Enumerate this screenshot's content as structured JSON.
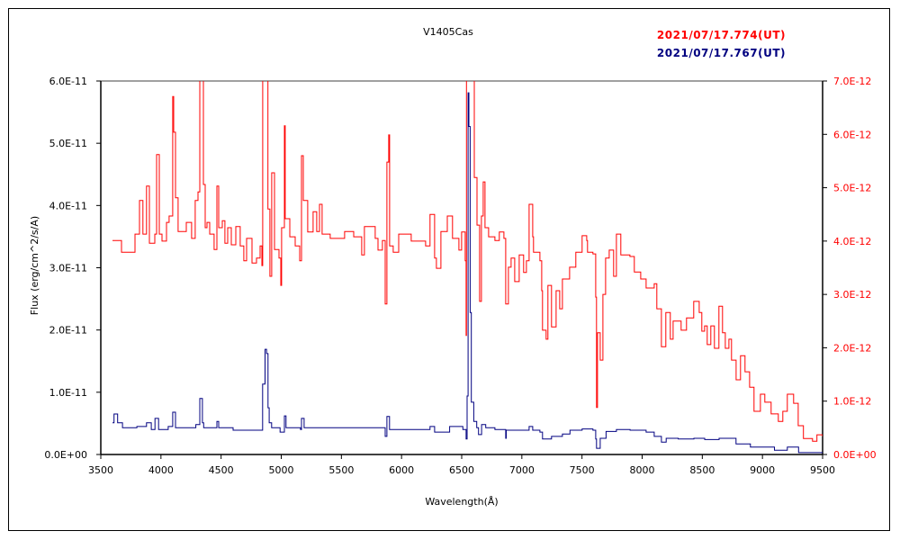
{
  "chart_data": {
    "type": "line",
    "title": "V1405Cas",
    "xlabel": "Wavelength(Å)",
    "ylabel": "Flux (erg/cm^2/s/A)",
    "xlim": [
      3500,
      9500
    ],
    "ylim_left": [
      0,
      6e-11
    ],
    "ylim_right": [
      0,
      7e-12
    ],
    "x_ticks": [
      "3500",
      "4000",
      "4500",
      "5000",
      "5500",
      "6000",
      "6500",
      "7000",
      "7500",
      "8000",
      "8500",
      "9000",
      "9500"
    ],
    "x_tick_values": [
      3500,
      4000,
      4500,
      5000,
      5500,
      6000,
      6500,
      7000,
      7500,
      8000,
      8500,
      9000,
      9500
    ],
    "y_left_ticks": [
      "0.0E+00",
      "1.0E-11",
      "2.0E-11",
      "3.0E-11",
      "4.0E-11",
      "5.0E-11",
      "6.0E-11"
    ],
    "y_left_tick_values": [
      0,
      1e-11,
      2e-11,
      3e-11,
      4e-11,
      5e-11,
      6e-11
    ],
    "y_right_ticks": [
      "0.0E+00",
      "1.0E-12",
      "2.0E-12",
      "3.0E-12",
      "4.0E-12",
      "5.0E-12",
      "6.0E-12",
      "7.0E-12"
    ],
    "y_right_tick_values": [
      0,
      1e-12,
      2e-12,
      3e-12,
      4e-12,
      5e-12,
      6e-12,
      7e-12
    ],
    "grid": false,
    "legend_placement": "top-right",
    "series": [
      {
        "name": "2021/07/17.774(UT)",
        "color": "#ff0000",
        "axis": "right",
        "points": [
          [
            3597,
            4.01e-12
          ],
          [
            3672,
            3.79e-12
          ],
          [
            3784,
            4.13e-12
          ],
          [
            3822,
            4.76e-12
          ],
          [
            3850,
            4.13e-12
          ],
          [
            3880,
            5.03e-12
          ],
          [
            3904,
            3.96e-12
          ],
          [
            3949,
            4.13e-12
          ],
          [
            3964,
            5.62e-12
          ],
          [
            3986,
            4.13e-12
          ],
          [
            4009,
            4e-12
          ],
          [
            4046,
            4.35e-12
          ],
          [
            4068,
            4.47e-12
          ],
          [
            4098,
            6.71e-12
          ],
          [
            4106,
            6.04e-12
          ],
          [
            4121,
            4.81e-12
          ],
          [
            4143,
            4.18e-12
          ],
          [
            4211,
            4.35e-12
          ],
          [
            4255,
            4.05e-12
          ],
          [
            4285,
            4.76e-12
          ],
          [
            4308,
            4.92e-12
          ],
          [
            4323,
            7.5e-12
          ],
          [
            4345,
            7.5e-12
          ],
          [
            4353,
            5.06e-12
          ],
          [
            4368,
            4.25e-12
          ],
          [
            4383,
            4.35e-12
          ],
          [
            4405,
            4.13e-12
          ],
          [
            4442,
            3.84e-12
          ],
          [
            4465,
            5.03e-12
          ],
          [
            4480,
            4.25e-12
          ],
          [
            4510,
            4.38e-12
          ],
          [
            4532,
            3.96e-12
          ],
          [
            4555,
            4.25e-12
          ],
          [
            4585,
            3.93e-12
          ],
          [
            4622,
            4.27e-12
          ],
          [
            4659,
            3.91e-12
          ],
          [
            4689,
            3.63e-12
          ],
          [
            4712,
            4.05e-12
          ],
          [
            4757,
            3.59e-12
          ],
          [
            4794,
            3.68e-12
          ],
          [
            4824,
            3.91e-12
          ],
          [
            4839,
            3.54e-12
          ],
          [
            4846,
            7.5e-12
          ],
          [
            4884,
            7.5e-12
          ],
          [
            4889,
            4.6e-12
          ],
          [
            4906,
            3.34e-12
          ],
          [
            4921,
            5.28e-12
          ],
          [
            4944,
            3.84e-12
          ],
          [
            4981,
            3.68e-12
          ],
          [
            4996,
            3.17e-12
          ],
          [
            5003,
            4.25e-12
          ],
          [
            5026,
            6.16e-12
          ],
          [
            5033,
            4.42e-12
          ],
          [
            5071,
            4.08e-12
          ],
          [
            5116,
            3.91e-12
          ],
          [
            5153,
            3.63e-12
          ],
          [
            5168,
            5.6e-12
          ],
          [
            5183,
            4.76e-12
          ],
          [
            5220,
            4.17e-12
          ],
          [
            5265,
            4.55e-12
          ],
          [
            5295,
            4.18e-12
          ],
          [
            5318,
            4.69e-12
          ],
          [
            5340,
            4.13e-12
          ],
          [
            5407,
            4.05e-12
          ],
          [
            5527,
            4.18e-12
          ],
          [
            5602,
            4.08e-12
          ],
          [
            5669,
            3.74e-12
          ],
          [
            5691,
            4.27e-12
          ],
          [
            5781,
            4.05e-12
          ],
          [
            5804,
            3.83e-12
          ],
          [
            5841,
            4.01e-12
          ],
          [
            5864,
            2.82e-12
          ],
          [
            5878,
            5.48e-12
          ],
          [
            5893,
            5.99e-12
          ],
          [
            5901,
            3.91e-12
          ],
          [
            5931,
            3.79e-12
          ],
          [
            5976,
            4.13e-12
          ],
          [
            6080,
            4e-12
          ],
          [
            6200,
            3.91e-12
          ],
          [
            6237,
            4.5e-12
          ],
          [
            6275,
            3.68e-12
          ],
          [
            6290,
            3.49e-12
          ],
          [
            6327,
            4.18e-12
          ],
          [
            6380,
            4.47e-12
          ],
          [
            6424,
            4.05e-12
          ],
          [
            6477,
            3.83e-12
          ],
          [
            6499,
            4.17e-12
          ],
          [
            6529,
            3.63e-12
          ],
          [
            6537,
            2.23e-12
          ],
          [
            6540,
            7.5e-12
          ],
          [
            6604,
            7.5e-12
          ],
          [
            6605,
            5.19e-12
          ],
          [
            6627,
            4.3e-12
          ],
          [
            6649,
            2.87e-12
          ],
          [
            6664,
            4.47e-12
          ],
          [
            6679,
            5.11e-12
          ],
          [
            6694,
            4.25e-12
          ],
          [
            6724,
            4.08e-12
          ],
          [
            6776,
            4.01e-12
          ],
          [
            6813,
            4.17e-12
          ],
          [
            6851,
            4.05e-12
          ],
          [
            6866,
            2.82e-12
          ],
          [
            6888,
            3.51e-12
          ],
          [
            6911,
            3.68e-12
          ],
          [
            6941,
            3.24e-12
          ],
          [
            6978,
            3.74e-12
          ],
          [
            7015,
            3.41e-12
          ],
          [
            7038,
            3.63e-12
          ],
          [
            7060,
            4.69e-12
          ],
          [
            7090,
            4.08e-12
          ],
          [
            7097,
            3.79e-12
          ],
          [
            7150,
            3.63e-12
          ],
          [
            7165,
            3.07e-12
          ],
          [
            7172,
            2.33e-12
          ],
          [
            7202,
            2.16e-12
          ],
          [
            7217,
            3.17e-12
          ],
          [
            7247,
            2.39e-12
          ],
          [
            7285,
            3.07e-12
          ],
          [
            7315,
            2.73e-12
          ],
          [
            7337,
            3.29e-12
          ],
          [
            7397,
            3.51e-12
          ],
          [
            7449,
            3.79e-12
          ],
          [
            7501,
            4.1e-12
          ],
          [
            7539,
            4.01e-12
          ],
          [
            7546,
            3.79e-12
          ],
          [
            7591,
            3.76e-12
          ],
          [
            7614,
            2.95e-12
          ],
          [
            7621,
            8.8e-13
          ],
          [
            7629,
            2.28e-12
          ],
          [
            7651,
            1.77e-12
          ],
          [
            7674,
            3e-12
          ],
          [
            7696,
            3.68e-12
          ],
          [
            7726,
            3.83e-12
          ],
          [
            7763,
            3.34e-12
          ],
          [
            7786,
            4.13e-12
          ],
          [
            7823,
            3.74e-12
          ],
          [
            7898,
            3.71e-12
          ],
          [
            7935,
            3.42e-12
          ],
          [
            7988,
            3.29e-12
          ],
          [
            8033,
            3.12e-12
          ],
          [
            8100,
            3.2e-12
          ],
          [
            8122,
            2.73e-12
          ],
          [
            8160,
            2.02e-12
          ],
          [
            8197,
            2.66e-12
          ],
          [
            8234,
            2.16e-12
          ],
          [
            8257,
            2.5e-12
          ],
          [
            8324,
            2.33e-12
          ],
          [
            8369,
            2.56e-12
          ],
          [
            8429,
            2.87e-12
          ],
          [
            8474,
            2.66e-12
          ],
          [
            8496,
            2.31e-12
          ],
          [
            8519,
            2.41e-12
          ],
          [
            8541,
            2.06e-12
          ],
          [
            8571,
            2.41e-12
          ],
          [
            8601,
            1.99e-12
          ],
          [
            8638,
            2.78e-12
          ],
          [
            8668,
            2.28e-12
          ],
          [
            8691,
            1.99e-12
          ],
          [
            8721,
            2.16e-12
          ],
          [
            8743,
            1.77e-12
          ],
          [
            8781,
            1.4e-12
          ],
          [
            8818,
            1.85e-12
          ],
          [
            8855,
            1.55e-12
          ],
          [
            8893,
            1.26e-12
          ],
          [
            8930,
            8.1e-13
          ],
          [
            8983,
            1.13e-12
          ],
          [
            9020,
            9.8e-13
          ],
          [
            9072,
            7.6e-13
          ],
          [
            9132,
            6.2e-13
          ],
          [
            9169,
            8.1e-13
          ],
          [
            9207,
            1.13e-12
          ],
          [
            9259,
            9.6e-13
          ],
          [
            9297,
            5.4e-13
          ],
          [
            9341,
            3e-13
          ],
          [
            9416,
            2.5e-13
          ],
          [
            9453,
            3.7e-13
          ],
          [
            9500,
            3.4e-13
          ]
        ]
      },
      {
        "name": "2021/07/17.767(UT)",
        "color": "#000080",
        "axis": "left",
        "points": [
          [
            3597,
            5.1e-12
          ],
          [
            3610,
            6.5e-12
          ],
          [
            3640,
            5.1e-12
          ],
          [
            3680,
            4.3e-12
          ],
          [
            3800,
            4.5e-12
          ],
          [
            3880,
            5.1e-12
          ],
          [
            3920,
            4e-12
          ],
          [
            3950,
            5.8e-12
          ],
          [
            3980,
            4e-12
          ],
          [
            4060,
            4.5e-12
          ],
          [
            4098,
            6.8e-12
          ],
          [
            4121,
            4.3e-12
          ],
          [
            4210,
            4.3e-12
          ],
          [
            4290,
            4.8e-12
          ],
          [
            4323,
            9e-12
          ],
          [
            4345,
            5.1e-12
          ],
          [
            4355,
            4.3e-12
          ],
          [
            4465,
            5.3e-12
          ],
          [
            4480,
            4.3e-12
          ],
          [
            4600,
            3.9e-12
          ],
          [
            4830,
            3.9e-12
          ],
          [
            4845,
            1.13e-11
          ],
          [
            4865,
            1.69e-11
          ],
          [
            4878,
            1.62e-11
          ],
          [
            4890,
            7.5e-12
          ],
          [
            4900,
            5.1e-12
          ],
          [
            4920,
            4.3e-12
          ],
          [
            4990,
            3.6e-12
          ],
          [
            5026,
            6.2e-12
          ],
          [
            5040,
            4.3e-12
          ],
          [
            5160,
            4e-12
          ],
          [
            5168,
            5.8e-12
          ],
          [
            5190,
            4.3e-12
          ],
          [
            5500,
            4.3e-12
          ],
          [
            5864,
            2.9e-12
          ],
          [
            5878,
            6.1e-12
          ],
          [
            5900,
            4e-12
          ],
          [
            6200,
            4e-12
          ],
          [
            6237,
            4.5e-12
          ],
          [
            6275,
            3.6e-12
          ],
          [
            6400,
            4.5e-12
          ],
          [
            6510,
            4e-12
          ],
          [
            6537,
            2.5e-12
          ],
          [
            6545,
            9.4e-12
          ],
          [
            6553,
            5.81e-11
          ],
          [
            6560,
            5.27e-11
          ],
          [
            6570,
            2.28e-11
          ],
          [
            6580,
            8.4e-12
          ],
          [
            6600,
            5.3e-12
          ],
          [
            6625,
            4.3e-12
          ],
          [
            6640,
            3.2e-12
          ],
          [
            6665,
            4.8e-12
          ],
          [
            6700,
            4.3e-12
          ],
          [
            6776,
            4e-12
          ],
          [
            6866,
            2.6e-12
          ],
          [
            6870,
            3.9e-12
          ],
          [
            7060,
            4.5e-12
          ],
          [
            7090,
            3.9e-12
          ],
          [
            7150,
            3.6e-12
          ],
          [
            7172,
            2.5e-12
          ],
          [
            7247,
            2.9e-12
          ],
          [
            7337,
            3.3e-12
          ],
          [
            7400,
            3.9e-12
          ],
          [
            7501,
            4.1e-12
          ],
          [
            7591,
            3.9e-12
          ],
          [
            7614,
            2.5e-12
          ],
          [
            7621,
            1e-12
          ],
          [
            7651,
            2.6e-12
          ],
          [
            7700,
            3.7e-12
          ],
          [
            7786,
            4e-12
          ],
          [
            7900,
            3.9e-12
          ],
          [
            8033,
            3.6e-12
          ],
          [
            8100,
            2.9e-12
          ],
          [
            8160,
            2e-12
          ],
          [
            8200,
            2.6e-12
          ],
          [
            8300,
            2.5e-12
          ],
          [
            8430,
            2.6e-12
          ],
          [
            8520,
            2.4e-12
          ],
          [
            8640,
            2.6e-12
          ],
          [
            8780,
            1.7e-12
          ],
          [
            8900,
            1.2e-12
          ],
          [
            9100,
            7e-13
          ],
          [
            9207,
            1.2e-12
          ],
          [
            9300,
            3e-13
          ],
          [
            9500,
            4e-13
          ]
        ]
      }
    ]
  }
}
